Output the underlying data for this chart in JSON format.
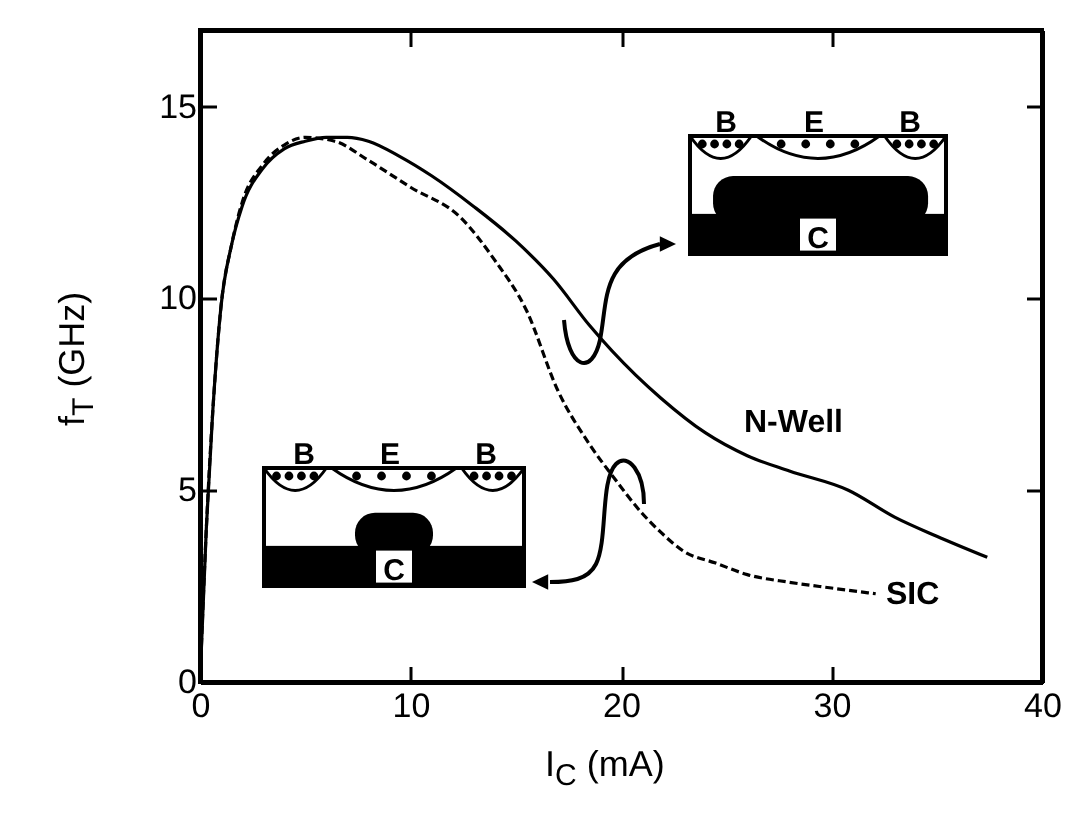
{
  "chart_data": {
    "type": "line",
    "xlabel": "I$_{C}$ (mA)",
    "ylabel": "f$_{T}$ (GHz)",
    "xlim": [
      0,
      40
    ],
    "xticks": [
      0,
      10,
      20,
      30,
      40
    ],
    "ylim": [
      0,
      17
    ],
    "yticks": [
      0,
      5,
      10,
      15
    ],
    "grid": false,
    "legend": false,
    "marker": "none",
    "series": [
      {
        "name": "N-Well",
        "color": "#000000",
        "line_style": "solid",
        "x": [
          0,
          0.3,
          0.6,
          1,
          1.5,
          2,
          3,
          4,
          5,
          6,
          7,
          8,
          9.5,
          11,
          13,
          15,
          16.8,
          18.5,
          20.7,
          21.9,
          24,
          26,
          28,
          30.8,
          33,
          35,
          37.4
        ],
        "values": [
          0,
          4,
          7,
          9.8,
          11.4,
          12.4,
          13.4,
          13.9,
          14.1,
          14.2,
          14.2,
          14.1,
          13.7,
          13.2,
          12.4,
          11.5,
          10.5,
          9.3,
          8,
          7.4,
          6.5,
          5.9,
          5.5,
          5,
          4.3,
          3.8,
          3.25
        ]
      },
      {
        "name": "SIC",
        "color": "#000000",
        "line_style": "dashed",
        "x": [
          0,
          0.3,
          0.6,
          1,
          1.5,
          2,
          3,
          4,
          5,
          6.4,
          8,
          10,
          12.4,
          14,
          15.5,
          17,
          18.5,
          19.7,
          21,
          21.9,
          23,
          24.5,
          26,
          28,
          30,
          32.1
        ],
        "values": [
          0,
          4,
          7,
          9.8,
          11.4,
          12.5,
          13.5,
          14,
          14.2,
          14.1,
          13.6,
          12.9,
          12.1,
          11,
          9.7,
          7.6,
          6.2,
          5.3,
          4.4,
          3.9,
          3.4,
          3.1,
          2.8,
          2.6,
          2.45,
          2.3
        ]
      }
    ],
    "annotations": [
      "B",
      "E",
      "B",
      "C",
      "B",
      "E",
      "B",
      "C"
    ]
  }
}
